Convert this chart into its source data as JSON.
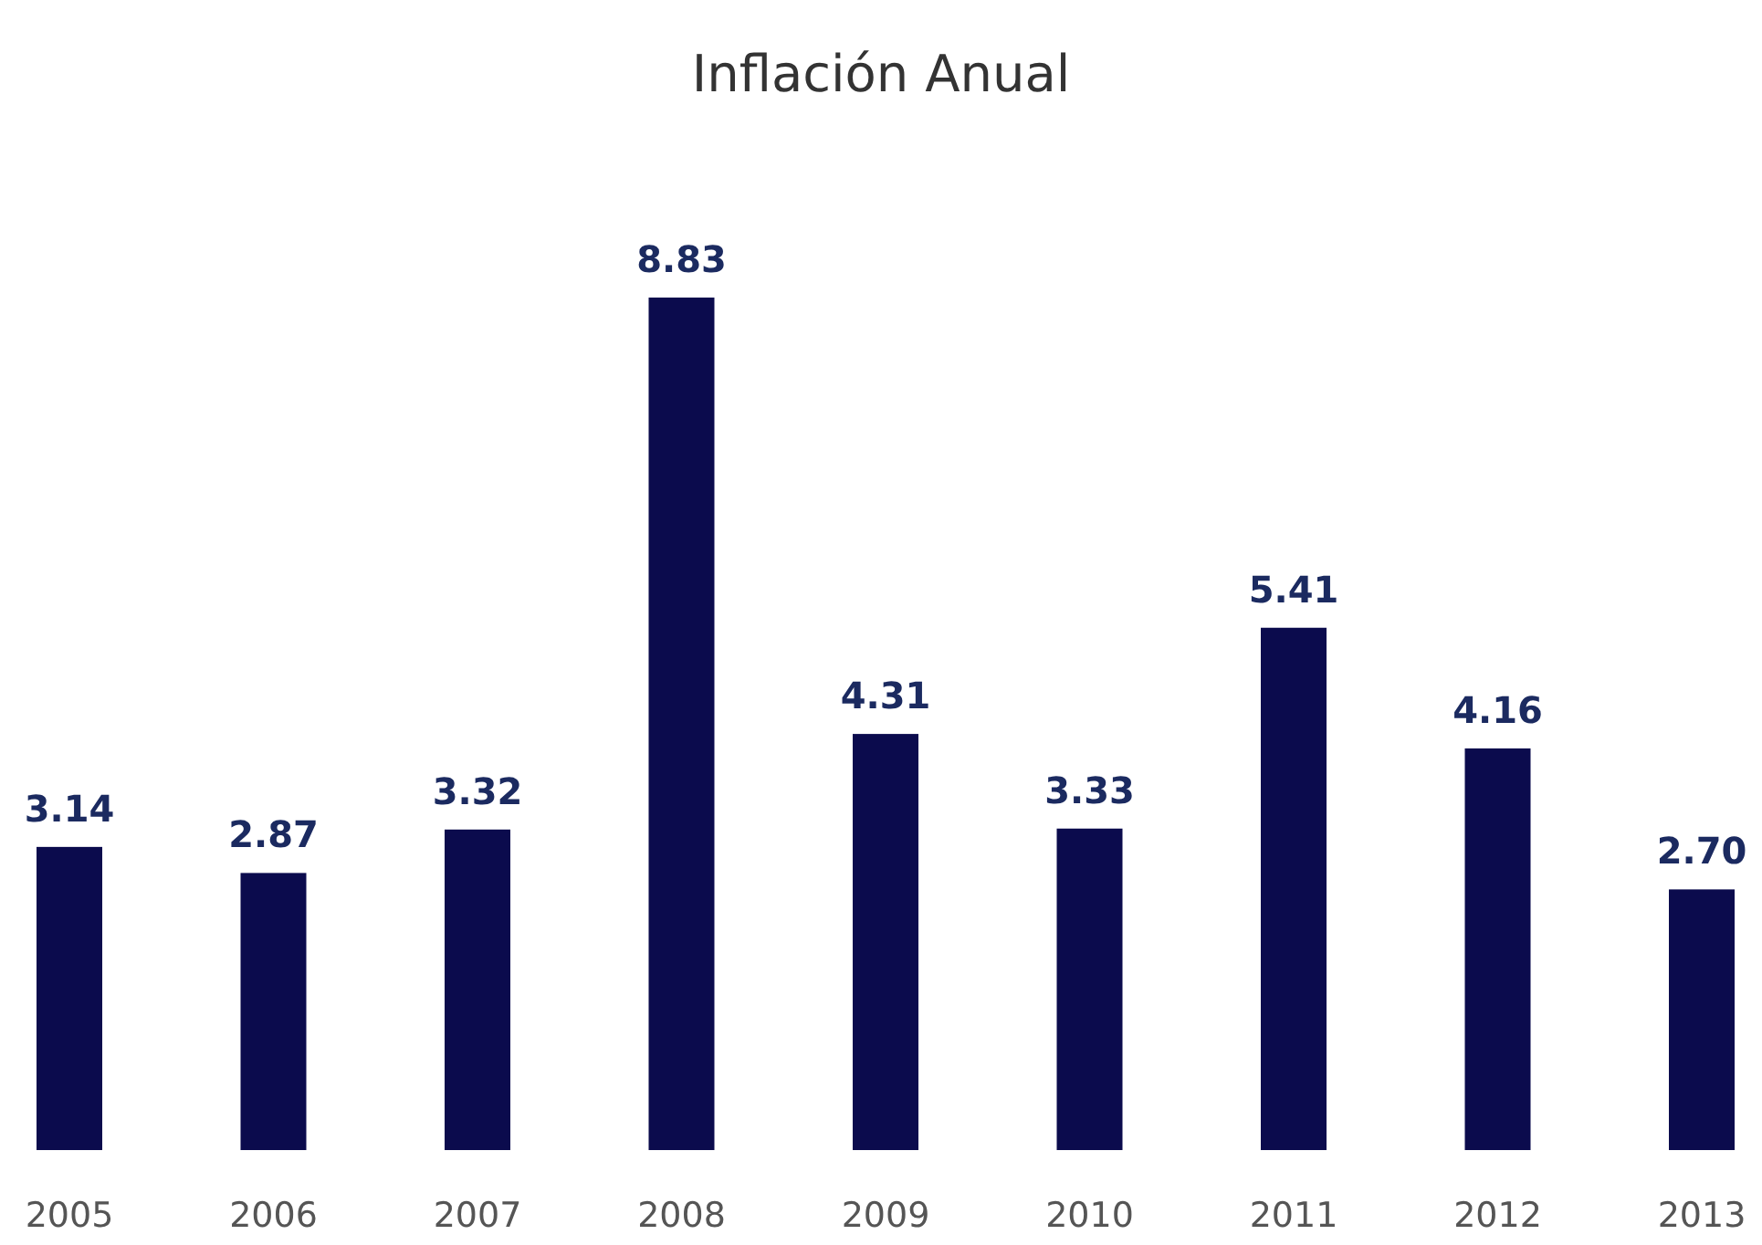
{
  "chart_data": {
    "type": "bar",
    "title": "Inflación Anual",
    "categories": [
      "2005",
      "2006",
      "2007",
      "2008",
      "2009",
      "2010",
      "2011",
      "2012",
      "2013"
    ],
    "values": [
      3.14,
      2.87,
      3.32,
      8.83,
      4.31,
      3.33,
      5.41,
      4.16,
      2.7
    ],
    "value_labels": [
      "3.14",
      "2.87",
      "3.32",
      "8.83",
      "4.31",
      "3.33",
      "5.41",
      "4.16",
      "2.70"
    ],
    "color": "#0b0b4d"
  }
}
